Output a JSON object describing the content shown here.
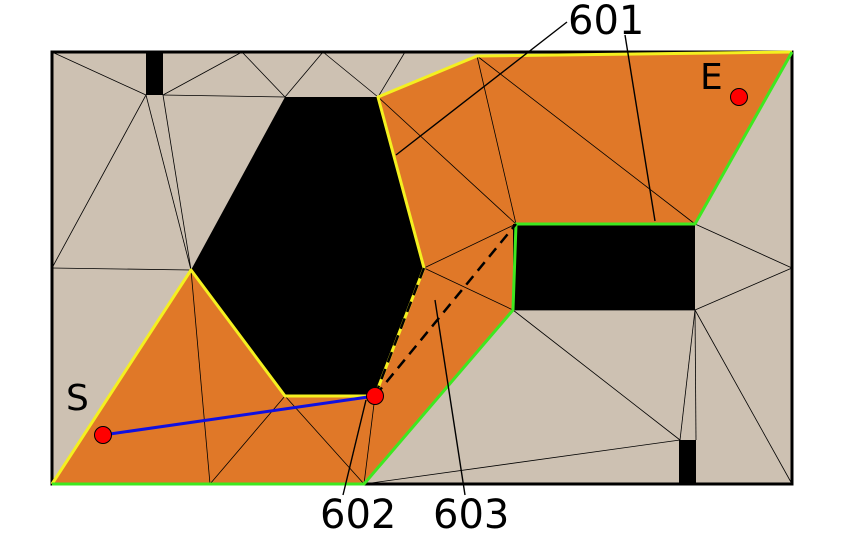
{
  "diagram": {
    "labels": {
      "start": "S",
      "end": "E",
      "ref_601": "601",
      "ref_602": "602",
      "ref_603": "603"
    },
    "colors": {
      "free_space": "#cdc1b2",
      "obstacle": "#000000",
      "corridor": "#e07828",
      "left_boundary": "#f4f020",
      "right_boundary": "#3ee820",
      "path": "#1010e0",
      "point": "#ff0000",
      "mesh_edge": "#000000"
    }
  }
}
